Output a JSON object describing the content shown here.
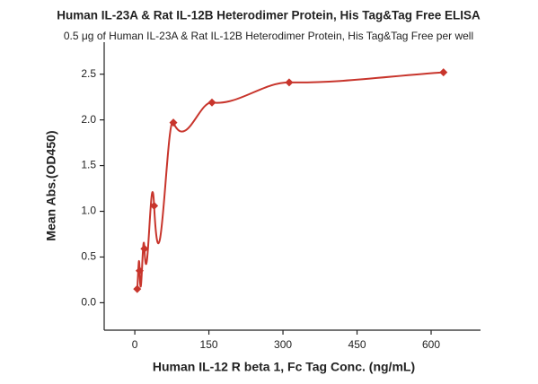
{
  "chart_data": {
    "type": "scatter",
    "title": "Human IL-23A & Rat IL-12B Heterodimer Protein, His Tag&Tag Free ELISA",
    "subtitle": "0.5 μg of Human IL-23A & Rat IL-12B Heterodimer Protein, His Tag&Tag Free per well",
    "x_label": "Human IL-12 R beta 1, Fc Tag Conc. (ng/mL)",
    "y_label": "Mean Abs.(OD450)",
    "x": [
      4.88,
      9.77,
      19.5,
      39.1,
      78.1,
      156.25,
      312.5,
      625
    ],
    "values": [
      0.15,
      0.35,
      0.59,
      1.06,
      1.97,
      2.19,
      2.41,
      2.52
    ],
    "color": "#c8352c",
    "xlim": [
      -62,
      700
    ],
    "xticks": [
      0,
      150,
      300,
      450,
      600
    ],
    "ylim": [
      -0.3,
      2.85
    ],
    "yticks": [
      {
        "value": 0,
        "label": "0.0"
      },
      0.5,
      {
        "value": 1,
        "label": "1.0"
      },
      1.5,
      {
        "value": 2,
        "label": "2.0"
      },
      2.5
    ]
  }
}
